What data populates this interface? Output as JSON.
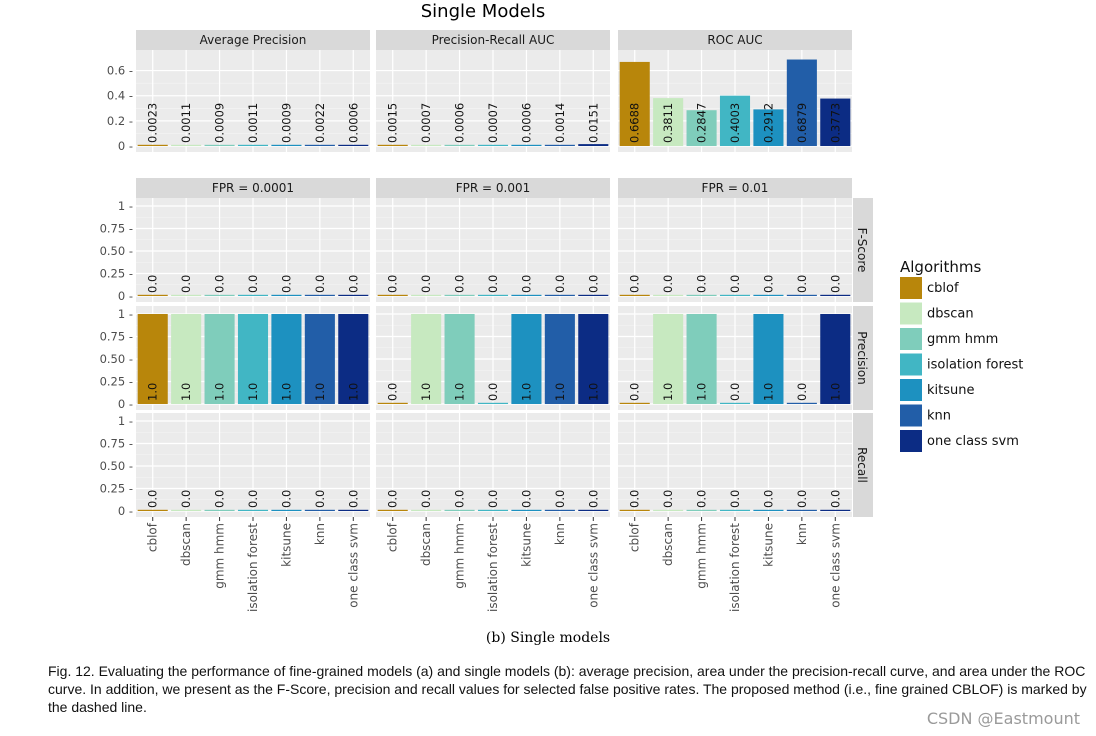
{
  "chart_data": {
    "type": "bar",
    "title": "Single Models",
    "categories": [
      "cblof",
      "dbscan",
      "gmm hmm",
      "isolation forest",
      "kitsune",
      "knn",
      "one class svm"
    ],
    "legend": {
      "title": "Algorithms",
      "placement": "right",
      "entries": [
        "cblof",
        "dbscan",
        "gmm hmm",
        "isolation forest",
        "kitsune",
        "knn",
        "one class svm"
      ],
      "colors": [
        "#b8860b",
        "#c7e9c0",
        "#7fcdbb",
        "#41b6c4",
        "#1d91c0",
        "#225ea8",
        "#0c2c84"
      ]
    },
    "top_row": {
      "ylim": [
        0,
        0.7
      ],
      "yticks": [
        "0 -",
        "0.2 -",
        "0.4 -",
        "0.6 -"
      ],
      "ytick_values": [
        0,
        0.2,
        0.4,
        0.6
      ],
      "panels": [
        {
          "title": "Average Precision",
          "values": [
            0.0023,
            0.0011,
            0.0009,
            0.0011,
            0.0009,
            0.0022,
            0.0006
          ],
          "labels": [
            "0.0023",
            "0.0011",
            "0.0009",
            "0.0011",
            "0.0009",
            "0.0022",
            "0.0006"
          ]
        },
        {
          "title": "Precision-Recall AUC",
          "values": [
            0.0015,
            0.0007,
            0.0006,
            0.0007,
            0.0006,
            0.0014,
            0.0151
          ],
          "labels": [
            "0.0015",
            "0.0007",
            "0.0006",
            "0.0007",
            "0.0006",
            "0.0014",
            "0.0151"
          ]
        },
        {
          "title": "ROC AUC",
          "values": [
            0.6688,
            0.3811,
            0.2847,
            0.4003,
            0.2912,
            0.6879,
            0.3773
          ],
          "labels": [
            "0.6688",
            "0.3811",
            "0.2847",
            "0.4003",
            "0.2912",
            "0.6879",
            "0.3773"
          ]
        }
      ]
    },
    "grid": {
      "ylim": [
        0,
        1
      ],
      "yticks": [
        "0 -",
        "0.25 -",
        "0.50 -",
        "0.75 -",
        "1 -"
      ],
      "ytick_values": [
        0,
        0.25,
        0.5,
        0.75,
        1
      ],
      "column_titles": [
        "FPR = 0.0001",
        "FPR = 0.001",
        "FPR = 0.01"
      ],
      "row_titles": [
        "F-Score",
        "Precision",
        "Recall"
      ],
      "cells": [
        [
          {
            "values": [
              0,
              0,
              0,
              0,
              0,
              0,
              0
            ],
            "labels": [
              "0.0",
              "0.0",
              "0.0",
              "0.0",
              "0.0",
              "0.0",
              "0.0"
            ]
          },
          {
            "values": [
              0,
              0,
              0,
              0,
              0,
              0,
              0
            ],
            "labels": [
              "0.0",
              "0.0",
              "0.0",
              "0.0",
              "0.0",
              "0.0",
              "0.0"
            ]
          },
          {
            "values": [
              0,
              0,
              0,
              0,
              0,
              0,
              0
            ],
            "labels": [
              "0.0",
              "0.0",
              "0.0",
              "0.0",
              "0.0",
              "0.0",
              "0.0"
            ]
          }
        ],
        [
          {
            "values": [
              1,
              1,
              1,
              1,
              1,
              1,
              1
            ],
            "labels": [
              "1.0",
              "1.0",
              "1.0",
              "1.0",
              "1.0",
              "1.0",
              "1.0"
            ]
          },
          {
            "values": [
              0,
              1,
              1,
              0,
              1,
              1,
              1
            ],
            "labels": [
              "0.0",
              "1.0",
              "1.0",
              "0.0",
              "1.0",
              "1.0",
              "1.0"
            ]
          },
          {
            "values": [
              0,
              1,
              1,
              0,
              1,
              0,
              1
            ],
            "labels": [
              "0.0",
              "1.0",
              "1.0",
              "0.0",
              "1.0",
              "0.0",
              "1.0"
            ]
          }
        ],
        [
          {
            "values": [
              0,
              0,
              0,
              0,
              0,
              0,
              0
            ],
            "labels": [
              "0.0",
              "0.0",
              "0.0",
              "0.0",
              "0.0",
              "0.0",
              "0.0"
            ]
          },
          {
            "values": [
              0,
              0,
              0,
              0,
              0,
              0,
              0
            ],
            "labels": [
              "0.0",
              "0.0",
              "0.0",
              "0.0",
              "0.0",
              "0.0",
              "0.0"
            ]
          },
          {
            "values": [
              0,
              0,
              0,
              0,
              0,
              0,
              0
            ],
            "labels": [
              "0.0",
              "0.0",
              "0.0",
              "0.0",
              "0.0",
              "0.0",
              "0.0"
            ]
          }
        ]
      ]
    },
    "grid_on": true
  },
  "captions": {
    "sub": "(b) Single models",
    "main": "Fig. 12. Evaluating the performance of fine-grained models (a) and single models (b): average precision, area under the precision-recall curve, and area under the ROC curve. In addition, we present as the F-Score, precision and recall values for selected false positive rates. The proposed method (i.e., fine grained CBLOF) is marked by the dashed line."
  },
  "watermark": "CSDN @Eastmount"
}
